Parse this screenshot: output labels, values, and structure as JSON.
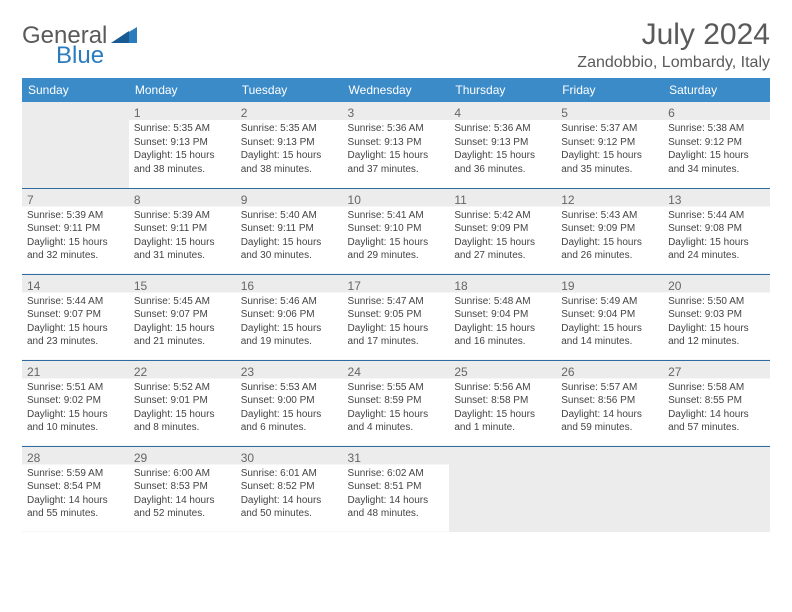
{
  "logo": {
    "part1": "General",
    "part2": "Blue"
  },
  "title": "July 2024",
  "location": "Zandobbio, Lombardy, Italy",
  "colors": {
    "header_bg": "#3b8bc9",
    "header_text": "#ffffff",
    "row_border": "#2f6aa0",
    "empty_bg": "#ececec",
    "text": "#444444",
    "daynum": "#666666",
    "logo_gray": "#5a5a5a",
    "logo_blue": "#2b7bbf"
  },
  "weekdays": [
    "Sunday",
    "Monday",
    "Tuesday",
    "Wednesday",
    "Thursday",
    "Friday",
    "Saturday"
  ],
  "weeks": [
    [
      null,
      {
        "n": "1",
        "sr": "Sunrise: 5:35 AM",
        "ss": "Sunset: 9:13 PM",
        "dl": "Daylight: 15 hours and 38 minutes."
      },
      {
        "n": "2",
        "sr": "Sunrise: 5:35 AM",
        "ss": "Sunset: 9:13 PM",
        "dl": "Daylight: 15 hours and 38 minutes."
      },
      {
        "n": "3",
        "sr": "Sunrise: 5:36 AM",
        "ss": "Sunset: 9:13 PM",
        "dl": "Daylight: 15 hours and 37 minutes."
      },
      {
        "n": "4",
        "sr": "Sunrise: 5:36 AM",
        "ss": "Sunset: 9:13 PM",
        "dl": "Daylight: 15 hours and 36 minutes."
      },
      {
        "n": "5",
        "sr": "Sunrise: 5:37 AM",
        "ss": "Sunset: 9:12 PM",
        "dl": "Daylight: 15 hours and 35 minutes."
      },
      {
        "n": "6",
        "sr": "Sunrise: 5:38 AM",
        "ss": "Sunset: 9:12 PM",
        "dl": "Daylight: 15 hours and 34 minutes."
      }
    ],
    [
      {
        "n": "7",
        "sr": "Sunrise: 5:39 AM",
        "ss": "Sunset: 9:11 PM",
        "dl": "Daylight: 15 hours and 32 minutes."
      },
      {
        "n": "8",
        "sr": "Sunrise: 5:39 AM",
        "ss": "Sunset: 9:11 PM",
        "dl": "Daylight: 15 hours and 31 minutes."
      },
      {
        "n": "9",
        "sr": "Sunrise: 5:40 AM",
        "ss": "Sunset: 9:11 PM",
        "dl": "Daylight: 15 hours and 30 minutes."
      },
      {
        "n": "10",
        "sr": "Sunrise: 5:41 AM",
        "ss": "Sunset: 9:10 PM",
        "dl": "Daylight: 15 hours and 29 minutes."
      },
      {
        "n": "11",
        "sr": "Sunrise: 5:42 AM",
        "ss": "Sunset: 9:09 PM",
        "dl": "Daylight: 15 hours and 27 minutes."
      },
      {
        "n": "12",
        "sr": "Sunrise: 5:43 AM",
        "ss": "Sunset: 9:09 PM",
        "dl": "Daylight: 15 hours and 26 minutes."
      },
      {
        "n": "13",
        "sr": "Sunrise: 5:44 AM",
        "ss": "Sunset: 9:08 PM",
        "dl": "Daylight: 15 hours and 24 minutes."
      }
    ],
    [
      {
        "n": "14",
        "sr": "Sunrise: 5:44 AM",
        "ss": "Sunset: 9:07 PM",
        "dl": "Daylight: 15 hours and 23 minutes."
      },
      {
        "n": "15",
        "sr": "Sunrise: 5:45 AM",
        "ss": "Sunset: 9:07 PM",
        "dl": "Daylight: 15 hours and 21 minutes."
      },
      {
        "n": "16",
        "sr": "Sunrise: 5:46 AM",
        "ss": "Sunset: 9:06 PM",
        "dl": "Daylight: 15 hours and 19 minutes."
      },
      {
        "n": "17",
        "sr": "Sunrise: 5:47 AM",
        "ss": "Sunset: 9:05 PM",
        "dl": "Daylight: 15 hours and 17 minutes."
      },
      {
        "n": "18",
        "sr": "Sunrise: 5:48 AM",
        "ss": "Sunset: 9:04 PM",
        "dl": "Daylight: 15 hours and 16 minutes."
      },
      {
        "n": "19",
        "sr": "Sunrise: 5:49 AM",
        "ss": "Sunset: 9:04 PM",
        "dl": "Daylight: 15 hours and 14 minutes."
      },
      {
        "n": "20",
        "sr": "Sunrise: 5:50 AM",
        "ss": "Sunset: 9:03 PM",
        "dl": "Daylight: 15 hours and 12 minutes."
      }
    ],
    [
      {
        "n": "21",
        "sr": "Sunrise: 5:51 AM",
        "ss": "Sunset: 9:02 PM",
        "dl": "Daylight: 15 hours and 10 minutes."
      },
      {
        "n": "22",
        "sr": "Sunrise: 5:52 AM",
        "ss": "Sunset: 9:01 PM",
        "dl": "Daylight: 15 hours and 8 minutes."
      },
      {
        "n": "23",
        "sr": "Sunrise: 5:53 AM",
        "ss": "Sunset: 9:00 PM",
        "dl": "Daylight: 15 hours and 6 minutes."
      },
      {
        "n": "24",
        "sr": "Sunrise: 5:55 AM",
        "ss": "Sunset: 8:59 PM",
        "dl": "Daylight: 15 hours and 4 minutes."
      },
      {
        "n": "25",
        "sr": "Sunrise: 5:56 AM",
        "ss": "Sunset: 8:58 PM",
        "dl": "Daylight: 15 hours and 1 minute."
      },
      {
        "n": "26",
        "sr": "Sunrise: 5:57 AM",
        "ss": "Sunset: 8:56 PM",
        "dl": "Daylight: 14 hours and 59 minutes."
      },
      {
        "n": "27",
        "sr": "Sunrise: 5:58 AM",
        "ss": "Sunset: 8:55 PM",
        "dl": "Daylight: 14 hours and 57 minutes."
      }
    ],
    [
      {
        "n": "28",
        "sr": "Sunrise: 5:59 AM",
        "ss": "Sunset: 8:54 PM",
        "dl": "Daylight: 14 hours and 55 minutes."
      },
      {
        "n": "29",
        "sr": "Sunrise: 6:00 AM",
        "ss": "Sunset: 8:53 PM",
        "dl": "Daylight: 14 hours and 52 minutes."
      },
      {
        "n": "30",
        "sr": "Sunrise: 6:01 AM",
        "ss": "Sunset: 8:52 PM",
        "dl": "Daylight: 14 hours and 50 minutes."
      },
      {
        "n": "31",
        "sr": "Sunrise: 6:02 AM",
        "ss": "Sunset: 8:51 PM",
        "dl": "Daylight: 14 hours and 48 minutes."
      },
      null,
      null,
      null
    ]
  ]
}
